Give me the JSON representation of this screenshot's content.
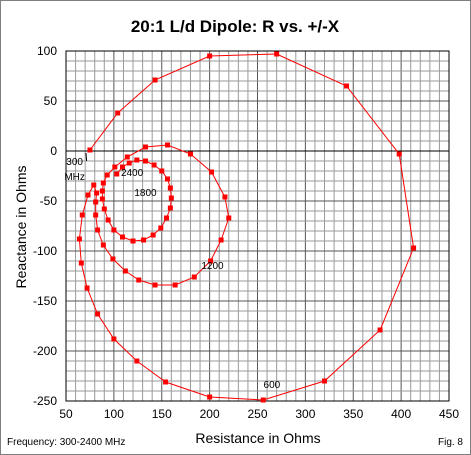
{
  "chart_data": {
    "type": "line",
    "title": "20:1 L/d Dipole: R vs. +/-X",
    "xlabel": "Resistance in Ohms",
    "ylabel": "Reactance in Ohms",
    "xlim": [
      50,
      450
    ],
    "ylim": [
      -250,
      100
    ],
    "xticks": [
      "50",
      "100",
      "150",
      "200",
      "250",
      "300",
      "350",
      "400",
      "450"
    ],
    "yticks": [
      "100",
      "50",
      "0",
      "-50",
      "-100",
      "-150",
      "-200",
      "-250"
    ],
    "grid": true,
    "footer_left": "Frequency: 300-2400 MHz",
    "footer_right": "Fig. 8",
    "line_color": "#ff0000",
    "series": [
      {
        "points": [
          [
            75,
            1
          ],
          [
            104,
            38
          ],
          [
            143,
            71
          ],
          [
            200,
            95
          ],
          [
            270,
            97
          ],
          [
            343,
            65
          ],
          [
            398,
            -3
          ],
          [
            413,
            -97
          ],
          [
            378,
            -179
          ],
          [
            320,
            -230
          ],
          [
            256,
            -249
          ],
          [
            200,
            -246
          ],
          [
            154,
            -231
          ],
          [
            124,
            -210
          ],
          [
            100,
            -188
          ],
          [
            83,
            -163
          ],
          [
            72,
            -137
          ],
          [
            66,
            -112
          ],
          [
            64,
            -88
          ],
          [
            67,
            -64
          ],
          [
            73,
            -44
          ],
          [
            79,
            -34
          ],
          [
            82,
            -42
          ],
          [
            81,
            -51
          ],
          [
            81,
            -64
          ],
          [
            83,
            -79
          ],
          [
            89,
            -94
          ],
          [
            99,
            -108
          ],
          [
            112,
            -120
          ],
          [
            126,
            -129
          ],
          [
            143,
            -134
          ],
          [
            164,
            -134
          ],
          [
            184,
            -126
          ],
          [
            201,
            -110
          ],
          [
            212,
            -89
          ],
          [
            220,
            -67
          ],
          [
            216,
            -46
          ],
          [
            202,
            -21
          ],
          [
            180,
            -3
          ],
          [
            156,
            6
          ],
          [
            133,
            4
          ],
          [
            114,
            -6
          ],
          [
            101,
            -16
          ],
          [
            93,
            -24
          ],
          [
            89,
            -32
          ],
          [
            88,
            -40
          ],
          [
            88,
            -48
          ],
          [
            90,
            -58
          ],
          [
            94,
            -69
          ],
          [
            100,
            -79
          ],
          [
            109,
            -86
          ],
          [
            120,
            -90
          ],
          [
            131,
            -89
          ],
          [
            141,
            -84
          ],
          [
            149,
            -77
          ],
          [
            155,
            -67
          ],
          [
            159,
            -57
          ],
          [
            160,
            -47
          ],
          [
            159,
            -37
          ],
          [
            156,
            -28
          ],
          [
            150,
            -20
          ],
          [
            142,
            -14
          ],
          [
            133,
            -10
          ],
          [
            124,
            -9
          ],
          [
            116,
            -12
          ],
          [
            109,
            -16
          ],
          [
            103,
            -23
          ]
        ]
      }
    ],
    "annotations": [
      {
        "text": "300",
        "x": 75,
        "y": 1,
        "text_at": [
          59,
          -14
        ],
        "leader": true
      },
      {
        "text": "MHz",
        "x": 75,
        "y": 1,
        "text_at": [
          59,
          -29
        ],
        "leader": false
      },
      {
        "text": "600",
        "x": 256,
        "y": -249,
        "text_at": [
          265,
          -237
        ],
        "leader": false
      },
      {
        "text": "1200",
        "x": 201,
        "y": -110,
        "text_at": [
          203,
          -118
        ],
        "leader": false
      },
      {
        "text": "1800",
        "x": 160,
        "y": -47,
        "text_at": [
          133,
          -45
        ],
        "leader": false
      },
      {
        "text": "2400",
        "x": 124,
        "y": -9,
        "text_at": [
          119,
          -25
        ],
        "leader": false
      }
    ]
  }
}
